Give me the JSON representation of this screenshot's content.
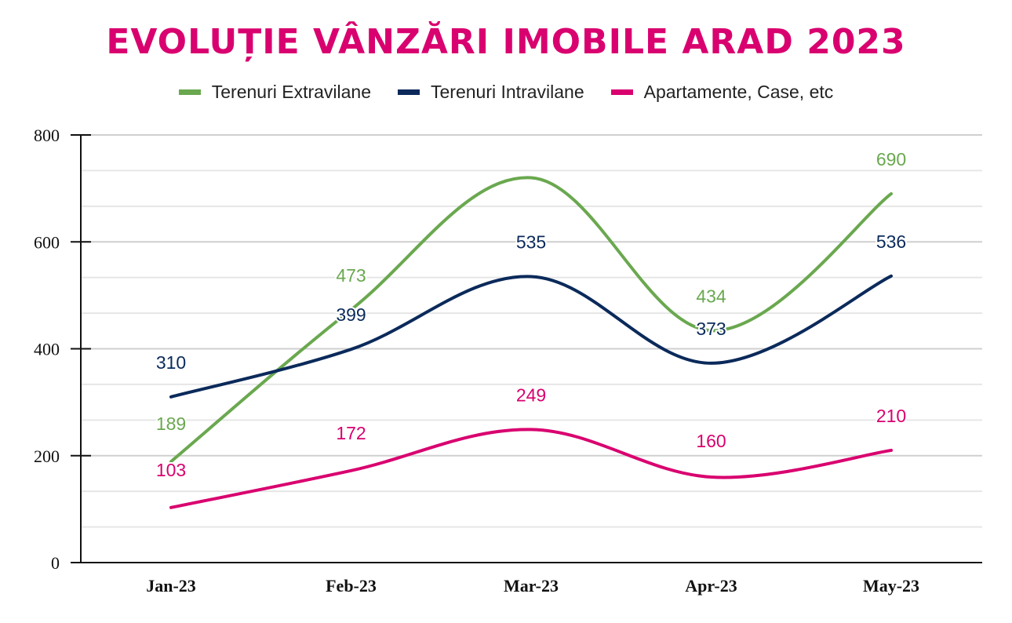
{
  "chart_data": {
    "type": "line",
    "title": "EVOLUȚIE VÂNZĂRI IMOBILE ARAD 2023",
    "categories": [
      "Jan-23",
      "Feb-23",
      "Mar-23",
      "Apr-23",
      "May-23"
    ],
    "xlabel": "",
    "ylabel": "",
    "ylim": [
      0,
      800
    ],
    "yticks": [
      "0",
      "200",
      "400",
      "600",
      "800"
    ],
    "grid": true,
    "legend_position": "top-center",
    "series": [
      {
        "name": "Terenuri Extravilane",
        "color": "#6aa84f",
        "values": [
          189,
          473,
          720,
          434,
          690
        ],
        "labels": [
          "189",
          "473",
          "",
          "434",
          "690"
        ]
      },
      {
        "name": "Terenuri Intravilane",
        "color": "#0b2a5b",
        "values": [
          310,
          399,
          535,
          373,
          536
        ],
        "labels": [
          "310",
          "399",
          "535",
          "373",
          "536"
        ]
      },
      {
        "name": "Apartamente, Case, etc",
        "color": "#d9006f",
        "values": [
          103,
          172,
          249,
          160,
          210
        ],
        "labels": [
          "103",
          "172",
          "249",
          "160",
          "210"
        ]
      }
    ]
  }
}
